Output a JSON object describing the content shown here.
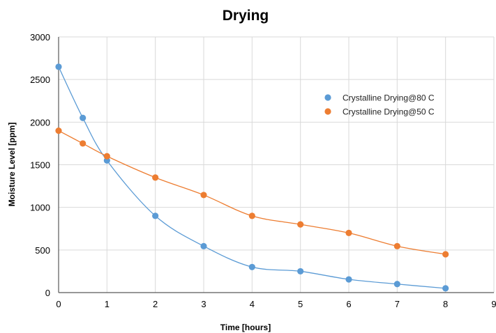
{
  "chart_data": {
    "type": "scatter",
    "title": "Drying",
    "xlabel": "Time [hours]",
    "ylabel": "Moisture Level [ppm]",
    "xlim": [
      0,
      9
    ],
    "ylim": [
      0,
      3000
    ],
    "xticks": [
      "0",
      "1",
      "2",
      "3",
      "4",
      "5",
      "6",
      "7",
      "8",
      "9"
    ],
    "yticks": [
      "0",
      "500",
      "1000",
      "1500",
      "2000",
      "2500",
      "3000"
    ],
    "grid": true,
    "legend_position": "right",
    "trendlines": true,
    "series": [
      {
        "name": "Crystalline Drying@80 C",
        "color": "#5b9bd5",
        "points": [
          [
            0,
            2650
          ],
          [
            0.5,
            2050
          ],
          [
            1,
            1550
          ],
          [
            2,
            900
          ],
          [
            3,
            545
          ],
          [
            4,
            300
          ],
          [
            5,
            250
          ],
          [
            6,
            155
          ],
          [
            7,
            100
          ],
          [
            8,
            50
          ]
        ]
      },
      {
        "name": "Crystalline Drying@50 C",
        "color": "#ed7d31",
        "points": [
          [
            0,
            1900
          ],
          [
            0.5,
            1750
          ],
          [
            1,
            1600
          ],
          [
            2,
            1350
          ],
          [
            3,
            1145
          ],
          [
            4,
            900
          ],
          [
            5,
            800
          ],
          [
            6,
            700
          ],
          [
            7,
            545
          ],
          [
            8,
            450
          ]
        ]
      }
    ]
  }
}
